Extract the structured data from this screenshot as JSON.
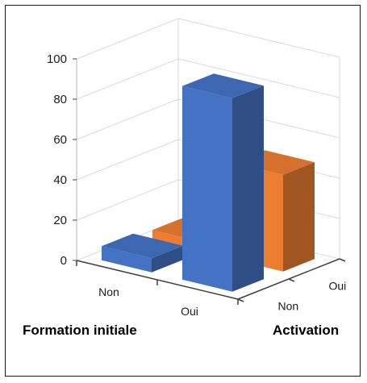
{
  "chart_data": {
    "type": "bar",
    "variant": "3d-column",
    "x_categories": [
      "Non",
      "Oui"
    ],
    "depth_categories": [
      "Non",
      "Oui"
    ],
    "xlabel": "Formation initiale",
    "zlabel": "Activation",
    "ylabel": "",
    "ylim": [
      0,
      100
    ],
    "yticks": [
      0,
      20,
      40,
      60,
      80,
      100
    ],
    "grid": true,
    "series": [
      {
        "depth": "Non",
        "values": [
          7,
          96
        ],
        "color": "#4472C4"
      },
      {
        "depth": "Oui",
        "values": [
          5,
          48
        ],
        "color": "#ED7D31"
      }
    ]
  }
}
